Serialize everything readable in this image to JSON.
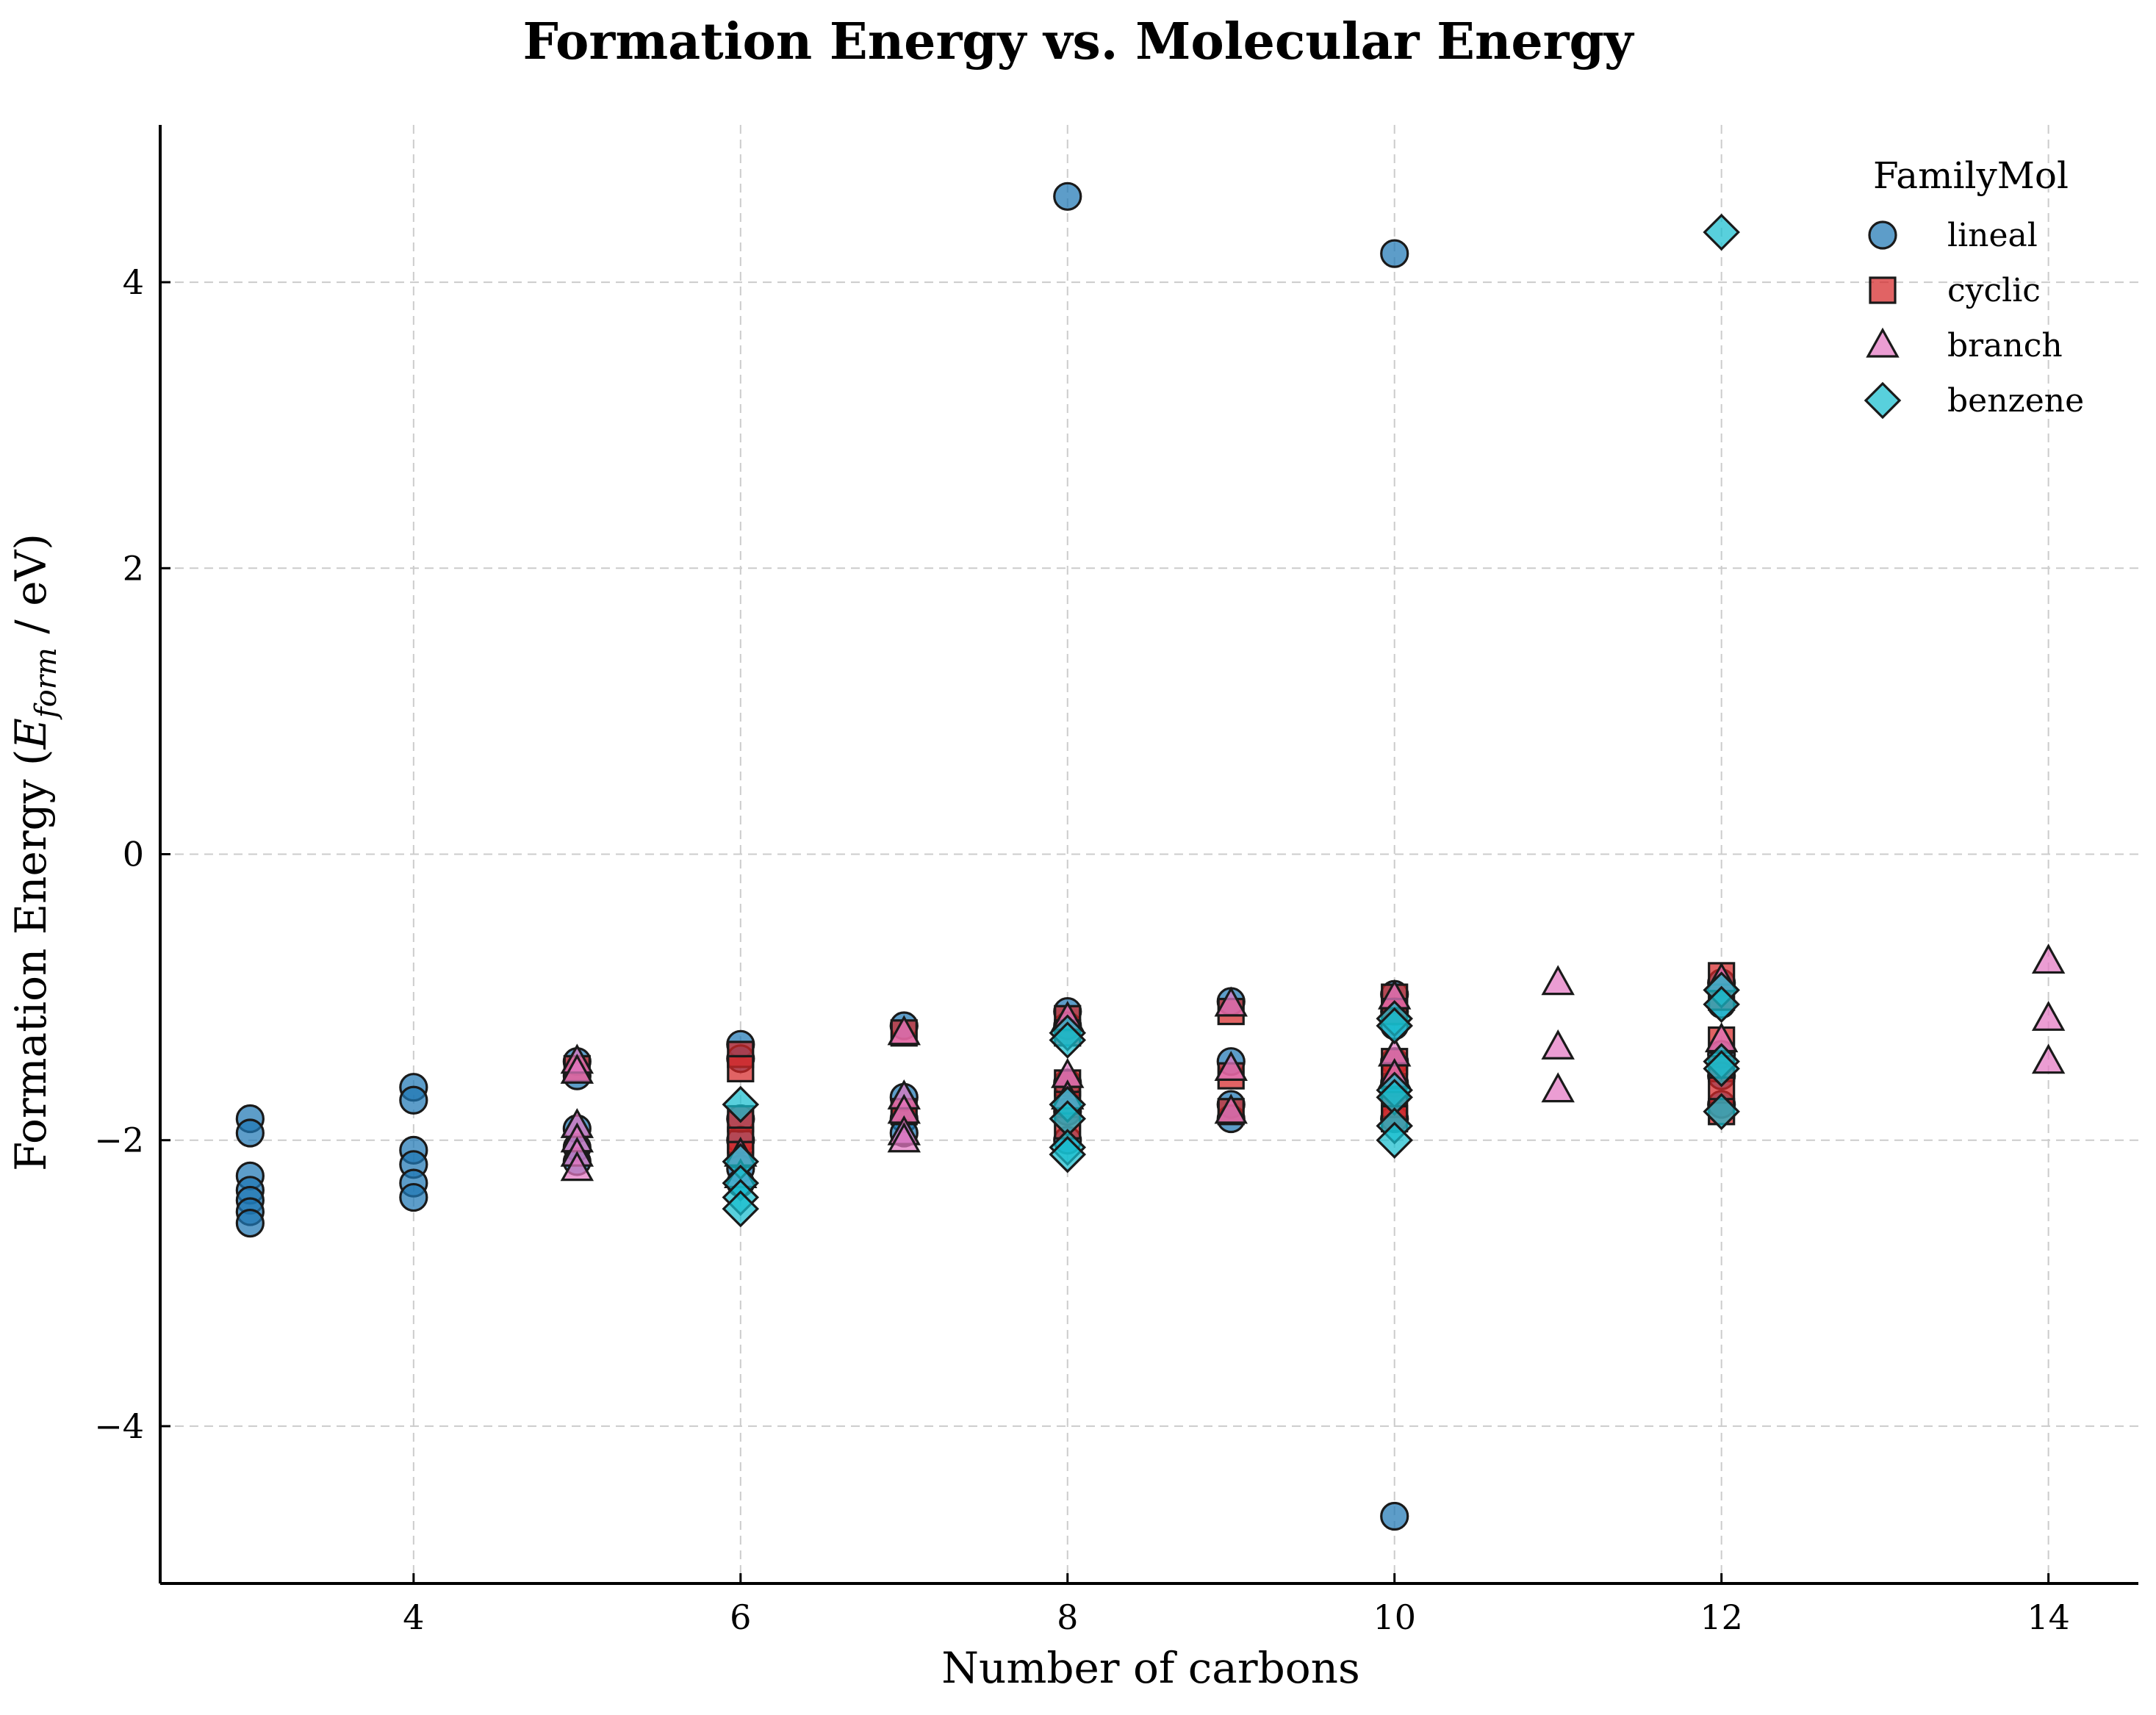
{
  "chart_data": {
    "type": "scatter",
    "title": "Formation Energy vs. Molecular Energy",
    "xlabel": "Number of carbons",
    "ylabel": {
      "prefix": "Formation Energy (",
      "symbol": "E",
      "subscript": "form",
      "suffix": " / eV)"
    },
    "xlim": [
      2.45,
      14.55
    ],
    "ylim": [
      -5.1,
      5.1
    ],
    "xticks": [
      4,
      6,
      8,
      10,
      12,
      14
    ],
    "yticks": [
      -4,
      -2,
      0,
      2,
      4
    ],
    "ytick_labels": [
      "−4",
      "−2",
      "0",
      "2",
      "4"
    ],
    "grid": true,
    "legend": {
      "title": "FamilyMol",
      "position": "top-right"
    },
    "series": [
      {
        "name": "lineal",
        "marker": "circle",
        "color": "#1f77b4",
        "points": [
          [
            3,
            -1.85
          ],
          [
            3,
            -1.95
          ],
          [
            3,
            -2.25
          ],
          [
            3,
            -2.35
          ],
          [
            3,
            -2.42
          ],
          [
            3,
            -2.5
          ],
          [
            3,
            -2.58
          ],
          [
            4,
            -1.63
          ],
          [
            4,
            -1.72
          ],
          [
            4,
            -2.07
          ],
          [
            4,
            -2.17
          ],
          [
            4,
            -2.3
          ],
          [
            4,
            -2.4
          ],
          [
            5,
            -1.45
          ],
          [
            5,
            -1.55
          ],
          [
            5,
            -1.92
          ],
          [
            5,
            -2.05
          ],
          [
            5,
            -2.15
          ],
          [
            6,
            -1.33
          ],
          [
            6,
            -1.43
          ],
          [
            6,
            -1.85
          ],
          [
            6,
            -2.0
          ],
          [
            6,
            -2.2
          ],
          [
            6,
            -2.3
          ],
          [
            7,
            -1.2
          ],
          [
            7,
            -1.7
          ],
          [
            7,
            -1.85
          ],
          [
            7,
            -1.95
          ],
          [
            8,
            4.6
          ],
          [
            8,
            -1.1
          ],
          [
            8,
            -1.2
          ],
          [
            8,
            -1.6
          ],
          [
            8,
            -1.8
          ],
          [
            8,
            -2.0
          ],
          [
            9,
            -1.03
          ],
          [
            9,
            -1.45
          ],
          [
            9,
            -1.75
          ],
          [
            9,
            -1.85
          ],
          [
            10,
            4.2
          ],
          [
            10,
            -0.98
          ],
          [
            10,
            -1.1
          ],
          [
            10,
            -1.2
          ],
          [
            10,
            -1.45
          ],
          [
            10,
            -1.6
          ],
          [
            10,
            -1.7
          ],
          [
            10,
            -1.85
          ],
          [
            10,
            -4.63
          ],
          [
            12,
            -0.9
          ],
          [
            12,
            -1.05
          ],
          [
            12,
            -1.4
          ],
          [
            12,
            -1.55
          ],
          [
            12,
            -1.75
          ]
        ]
      },
      {
        "name": "cyclic",
        "marker": "square",
        "color": "#d62728",
        "points": [
          [
            5,
            -1.5
          ],
          [
            6,
            -1.4
          ],
          [
            6,
            -1.5
          ],
          [
            6,
            -1.85
          ],
          [
            6,
            -2.0
          ],
          [
            6,
            -2.1
          ],
          [
            7,
            -1.25
          ],
          [
            7,
            -1.8
          ],
          [
            8,
            -1.15
          ],
          [
            8,
            -1.25
          ],
          [
            8,
            -1.6
          ],
          [
            8,
            -1.75
          ],
          [
            8,
            -1.9
          ],
          [
            9,
            -1.1
          ],
          [
            9,
            -1.55
          ],
          [
            9,
            -1.8
          ],
          [
            10,
            -1.0
          ],
          [
            10,
            -1.1
          ],
          [
            10,
            -1.45
          ],
          [
            10,
            -1.55
          ],
          [
            10,
            -1.75
          ],
          [
            10,
            -1.85
          ],
          [
            12,
            -0.85
          ],
          [
            12,
            -1.0
          ],
          [
            12,
            -1.3
          ],
          [
            12,
            -1.5
          ],
          [
            12,
            -1.65
          ],
          [
            12,
            -1.8
          ]
        ]
      },
      {
        "name": "branch",
        "marker": "triangle",
        "color": "#e377c2",
        "points": [
          [
            5,
            -1.45
          ],
          [
            5,
            -1.52
          ],
          [
            5,
            -1.9
          ],
          [
            5,
            -2.0
          ],
          [
            5,
            -2.1
          ],
          [
            5,
            -2.2
          ],
          [
            6,
            -2.1
          ],
          [
            6,
            -2.25
          ],
          [
            7,
            -1.25
          ],
          [
            7,
            -1.7
          ],
          [
            7,
            -1.8
          ],
          [
            7,
            -1.95
          ],
          [
            7,
            -2.0
          ],
          [
            8,
            -1.15
          ],
          [
            8,
            -1.55
          ],
          [
            8,
            -1.7
          ],
          [
            9,
            -1.05
          ],
          [
            9,
            -1.5
          ],
          [
            9,
            -1.8
          ],
          [
            10,
            -1.0
          ],
          [
            10,
            -1.4
          ],
          [
            10,
            -1.55
          ],
          [
            11,
            -0.9
          ],
          [
            11,
            -1.35
          ],
          [
            11,
            -1.65
          ],
          [
            12,
            -0.88
          ],
          [
            12,
            -1.3
          ],
          [
            14,
            -0.75
          ],
          [
            14,
            -1.15
          ],
          [
            14,
            -1.45
          ]
        ]
      },
      {
        "name": "benzene",
        "marker": "diamond",
        "color": "#17becf",
        "points": [
          [
            6,
            -1.75
          ],
          [
            6,
            -2.15
          ],
          [
            6,
            -2.3
          ],
          [
            6,
            -2.4
          ],
          [
            6,
            -2.48
          ],
          [
            8,
            -1.25
          ],
          [
            8,
            -1.3
          ],
          [
            8,
            -1.75
          ],
          [
            8,
            -1.85
          ],
          [
            8,
            -2.05
          ],
          [
            8,
            -2.1
          ],
          [
            10,
            -1.15
          ],
          [
            10,
            -1.2
          ],
          [
            10,
            -1.65
          ],
          [
            10,
            -1.7
          ],
          [
            10,
            -1.9
          ],
          [
            10,
            -2.0
          ],
          [
            12,
            4.35
          ],
          [
            12,
            -0.95
          ],
          [
            12,
            -1.05
          ],
          [
            12,
            -1.45
          ],
          [
            12,
            -1.5
          ],
          [
            12,
            -1.8
          ]
        ]
      }
    ]
  }
}
